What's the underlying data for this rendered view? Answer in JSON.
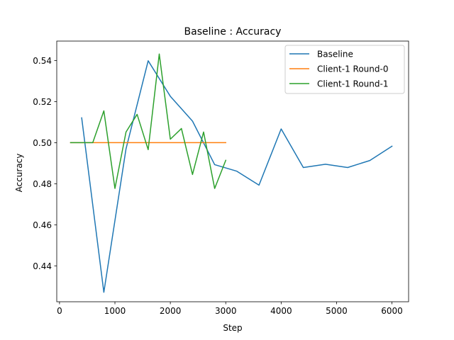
{
  "chart_data": {
    "type": "line",
    "title": "Baseline : Accuracy",
    "xlabel": "Step",
    "ylabel": "Accuracy",
    "xlim": [
      -50,
      6300
    ],
    "ylim": [
      0.4225,
      0.5495
    ],
    "x_ticks": [
      0,
      1000,
      2000,
      3000,
      4000,
      5000,
      6000
    ],
    "y_ticks": [
      0.44,
      0.46,
      0.48,
      0.5,
      0.52,
      0.54
    ],
    "legend_position": "top-right",
    "grid": false,
    "series": [
      {
        "name": "Baseline",
        "color": "#1f77b4",
        "x": [
          400,
          800,
          1200,
          1600,
          2000,
          2400,
          2800,
          3200,
          3600,
          4000,
          4400,
          4800,
          5200,
          5600,
          6000
        ],
        "y": [
          0.5121,
          0.4271,
          0.497,
          0.5399,
          0.5226,
          0.5105,
          0.4893,
          0.4861,
          0.4793,
          0.5067,
          0.4879,
          0.4895,
          0.4879,
          0.4913,
          0.4983
        ]
      },
      {
        "name": "Client-1 Round-0",
        "color": "#ff7f0e",
        "x": [
          200,
          400,
          600,
          800,
          1000,
          1200,
          1400,
          1600,
          1800,
          2000,
          2200,
          2400,
          2600,
          2800,
          3000
        ],
        "y": [
          0.5,
          0.5,
          0.5,
          0.5,
          0.5,
          0.5,
          0.5,
          0.5,
          0.5,
          0.5,
          0.5,
          0.5,
          0.5,
          0.5,
          0.5
        ]
      },
      {
        "name": "Client-1 Round-1",
        "color": "#2ca02c",
        "x": [
          200,
          400,
          600,
          800,
          1000,
          1200,
          1400,
          1600,
          1800,
          2000,
          2200,
          2400,
          2600,
          2800,
          3000
        ],
        "y": [
          0.5,
          0.5,
          0.5,
          0.5155,
          0.4777,
          0.5052,
          0.5138,
          0.4966,
          0.5432,
          0.5017,
          0.5069,
          0.4845,
          0.5052,
          0.4777,
          0.4914
        ]
      }
    ]
  }
}
